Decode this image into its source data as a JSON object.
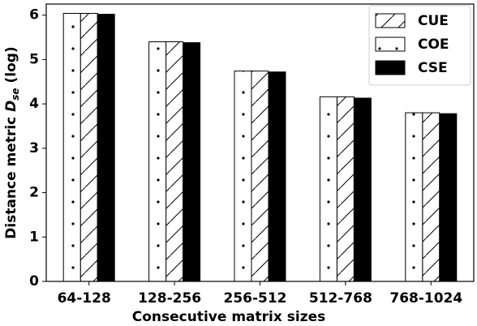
{
  "chart_data": {
    "type": "bar",
    "x_label": "Consecutive matrix sizes",
    "y_label": {
      "text": "Distance metric",
      "symbol": "D",
      "subscript": "se",
      "unit": "(log)"
    },
    "categories": [
      "64-128",
      "128-256",
      "256-512",
      "512-768",
      "768-1024"
    ],
    "series": [
      {
        "name": "CUE",
        "color": "white",
        "hatch": "/",
        "values": [
          6.04,
          5.4,
          4.74,
          4.16,
          3.8
        ]
      },
      {
        "name": "COE",
        "color": "white",
        "hatch": ".",
        "values": [
          6.04,
          5.4,
          4.74,
          4.16,
          3.8
        ]
      },
      {
        "name": "CSE",
        "color": "black",
        "values": [
          6.02,
          5.38,
          4.72,
          4.13,
          3.78
        ]
      }
    ],
    "ylim": [
      0,
      6.25
    ],
    "yticks": [
      0,
      1,
      2,
      3,
      4,
      5,
      6
    ],
    "legend": "upper right"
  }
}
